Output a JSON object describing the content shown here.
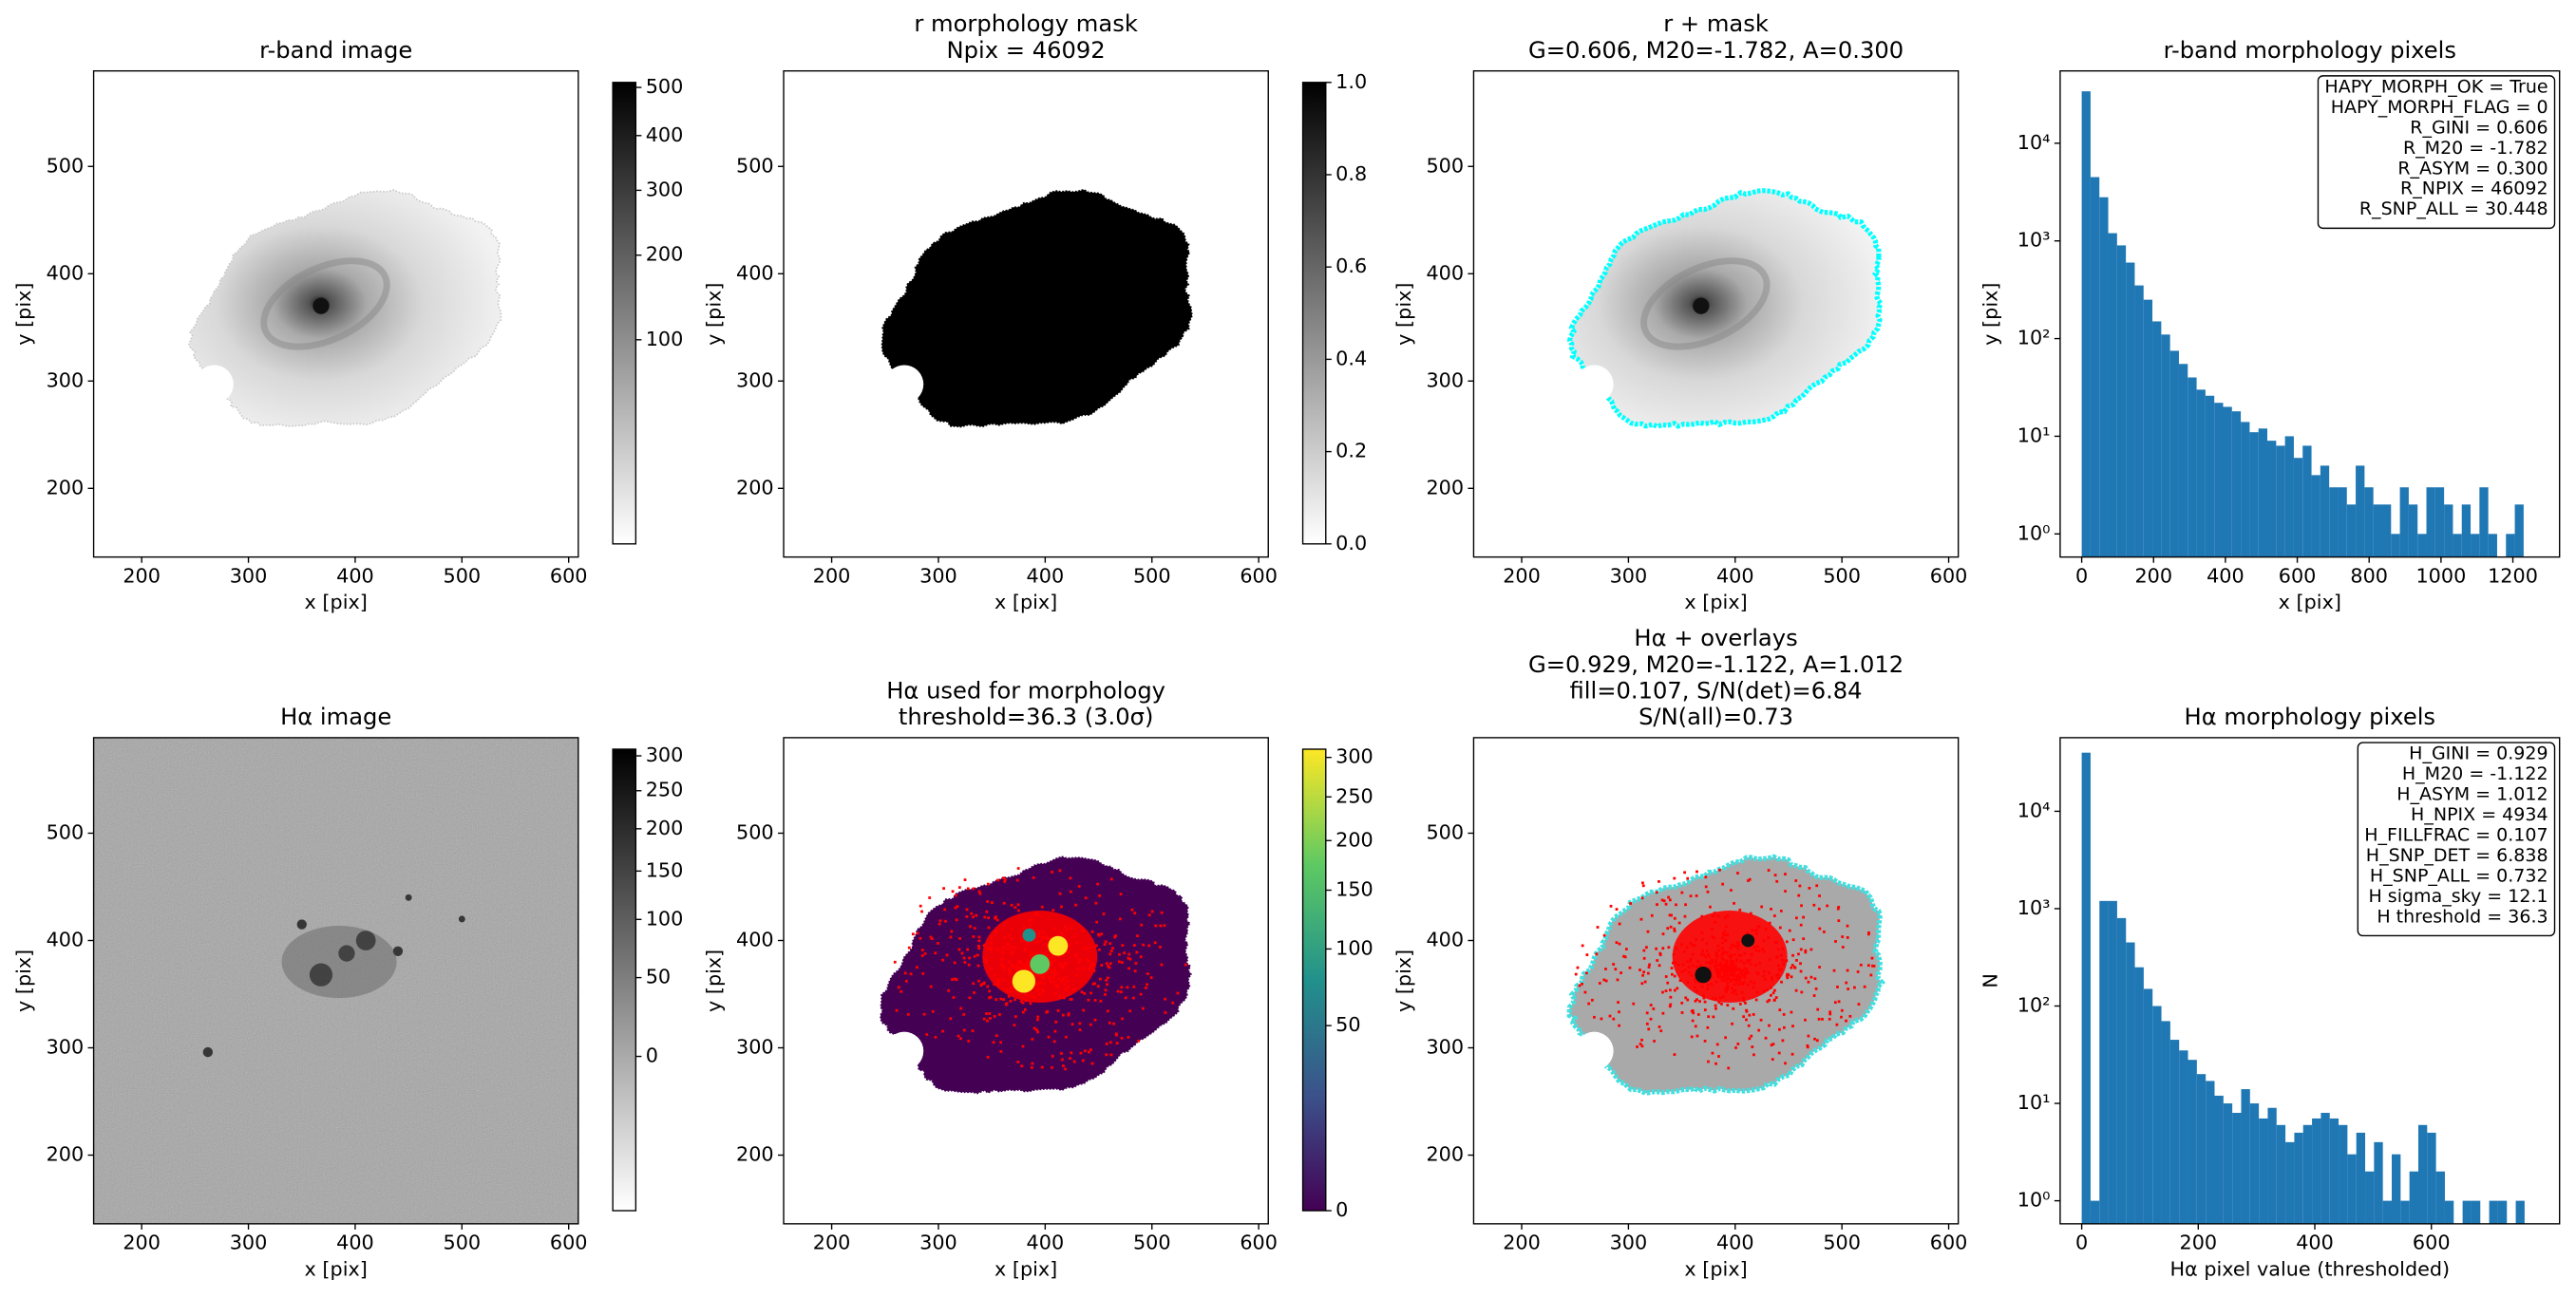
{
  "chart_data": [
    {
      "type": "image",
      "title": [
        "r-band image"
      ],
      "xlabel": "x [pix]",
      "ylabel": "y [pix]",
      "xlim": [
        155,
        609
      ],
      "ylim": [
        136,
        589
      ],
      "xticks": [
        200,
        300,
        400,
        500,
        600
      ],
      "yticks": [
        200,
        300,
        400,
        500
      ],
      "colorbar": {
        "cmap": "gray_r",
        "scale": "sqrt",
        "clim": [
          0,
          511
        ],
        "ticks": [
          100,
          200,
          300,
          400,
          500
        ]
      }
    },
    {
      "type": "image",
      "title": [
        "r morphology mask",
        "Npix = 46092"
      ],
      "xlabel": "x [pix]",
      "ylabel": "y [pix]",
      "xlim": [
        155,
        609
      ],
      "ylim": [
        136,
        589
      ],
      "xticks": [
        200,
        300,
        400,
        500,
        600
      ],
      "yticks": [
        200,
        300,
        400,
        500
      ],
      "colorbar": {
        "cmap": "gray_r",
        "scale": "linear",
        "clim": [
          0,
          1
        ],
        "ticks": [
          {
            "value": 0,
            "label": "0.0"
          },
          0.2,
          0.4,
          0.6,
          0.8,
          {
            "value": 1,
            "label": "1.0"
          }
        ]
      }
    },
    {
      "type": "image",
      "title": [
        "r + mask",
        "G=0.606, M20=-1.782, A=0.300"
      ],
      "xlabel": "x [pix]",
      "ylabel": "y [pix]",
      "xlim": [
        155,
        609
      ],
      "ylim": [
        136,
        589
      ],
      "xticks": [
        200,
        300,
        400,
        500,
        600
      ],
      "yticks": [
        200,
        300,
        400,
        500
      ]
    },
    {
      "type": "histogram",
      "title": [
        "r-band morphology pixels"
      ],
      "xlabel": "x [pix]",
      "ylabel": "y [pix]",
      "color": "#1f77b4",
      "log": true,
      "xlim": [
        -60,
        1330
      ],
      "ylim": [
        0.58,
        55000
      ],
      "xticks": [
        0,
        200,
        400,
        600,
        800,
        1000,
        1200
      ],
      "yticks": [
        {
          "value": 1,
          "label": "10⁰"
        },
        {
          "value": 10,
          "label": "10¹"
        },
        {
          "value": 100,
          "label": "10²"
        },
        {
          "value": 1000,
          "label": "10³"
        },
        {
          "value": 10000,
          "label": "10⁴"
        }
      ],
      "bins": [
        0,
        24.6,
        49.2,
        73.8,
        98.4,
        123,
        147.6,
        172.2,
        196.8,
        221.4,
        246,
        270.6,
        295.2,
        319.8,
        344.4,
        369,
        393.6,
        418.2,
        442.8,
        467.4,
        492,
        516.6,
        541.2,
        565.8,
        590.4,
        615,
        639.6,
        664.2,
        688.8,
        713.4,
        738,
        762.6,
        787.2,
        811.8,
        836.4,
        861,
        885.6,
        910.2,
        934.8,
        959.4,
        984,
        1008.6,
        1033.2,
        1057.8,
        1082.4,
        1107,
        1131.6,
        1156.2,
        1180.8,
        1205.4,
        1230
      ],
      "counts": [
        34000,
        4500,
        2800,
        1200,
        900,
        600,
        350,
        250,
        150,
        110,
        75,
        55,
        40,
        30,
        26,
        22,
        20,
        18,
        14,
        11,
        12,
        9,
        8,
        10,
        6,
        8,
        4,
        5,
        3,
        3,
        2,
        5,
        3,
        2,
        2,
        1,
        3,
        2,
        1,
        3,
        3,
        2,
        1,
        2,
        1,
        3,
        1,
        0,
        1,
        2
      ],
      "annotation": [
        "HAPY_MORPH_OK = True",
        "HAPY_MORPH_FLAG = 0",
        "R_GINI = 0.606",
        "R_M20 = -1.782",
        "R_ASYM = 0.300",
        "R_NPIX = 46092",
        "R_SNP_ALL = 30.448"
      ]
    },
    {
      "type": "image",
      "title": [
        "Hα image"
      ],
      "xlabel": "x [pix]",
      "ylabel": "y [pix]",
      "xlim": [
        155,
        609
      ],
      "ylim": [
        136,
        589
      ],
      "xticks": [
        200,
        300,
        400,
        500,
        600
      ],
      "yticks": [
        200,
        300,
        400,
        500
      ],
      "colorbar": {
        "cmap": "gray_r",
        "scale": "sqrt",
        "clim": [
          -39,
          310
        ],
        "ticks": [
          0,
          50,
          100,
          150,
          200,
          250,
          300
        ]
      }
    },
    {
      "type": "image",
      "title": [
        "Hα used for morphology",
        "threshold=36.3 (3.0σ)"
      ],
      "xlabel": "x [pix]",
      "ylabel": "y [pix]",
      "xlim": [
        155,
        609
      ],
      "ylim": [
        136,
        589
      ],
      "xticks": [
        200,
        300,
        400,
        500,
        600
      ],
      "yticks": [
        200,
        300,
        400,
        500
      ],
      "colorbar": {
        "cmap": "viridis",
        "scale": "sqrt",
        "clim": [
          0,
          311
        ],
        "ticks": [
          0,
          50,
          100,
          150,
          200,
          250,
          300
        ]
      }
    },
    {
      "type": "image",
      "title": [
        "Hα + overlays",
        "G=0.929, M20=-1.122, A=1.012",
        "fill=0.107, S/N(det)=6.84",
        "S/N(all)=0.73"
      ],
      "xlabel": "x [pix]",
      "ylabel": "y [pix]",
      "xlim": [
        155,
        609
      ],
      "ylim": [
        136,
        589
      ],
      "xticks": [
        200,
        300,
        400,
        500,
        600
      ],
      "yticks": [
        200,
        300,
        400,
        500
      ]
    },
    {
      "type": "histogram",
      "title": [
        "Hα morphology pixels"
      ],
      "xlabel": "Hα pixel value (thresholded)",
      "ylabel": "N",
      "color": "#1f77b4",
      "log": true,
      "xlim": [
        -37,
        820
      ],
      "ylim": [
        0.58,
        57000
      ],
      "xticks": [
        0,
        200,
        400,
        600
      ],
      "yticks": [
        {
          "value": 1,
          "label": "10⁰"
        },
        {
          "value": 10,
          "label": "10¹"
        },
        {
          "value": 100,
          "label": "10²"
        },
        {
          "value": 1000,
          "label": "10³"
        },
        {
          "value": 10000,
          "label": "10⁴"
        }
      ],
      "bins": [
        0,
        15.2,
        30.4,
        45.6,
        60.8,
        76,
        91.2,
        106.4,
        121.6,
        136.8,
        152,
        167.2,
        182.4,
        197.6,
        212.8,
        228,
        243.2,
        258.4,
        273.6,
        288.8,
        304,
        319.2,
        334.4,
        349.6,
        364.8,
        380,
        395.2,
        410.4,
        425.6,
        440.8,
        456,
        471.2,
        486.4,
        501.6,
        516.8,
        532,
        547.2,
        562.4,
        577.6,
        592.8,
        608,
        623.2,
        638.4,
        653.6,
        668.8,
        684,
        699.2,
        714.4,
        729.6,
        744.8,
        760
      ],
      "counts": [
        40000,
        1,
        1200,
        1200,
        800,
        450,
        250,
        150,
        100,
        70,
        45,
        35,
        28,
        20,
        17,
        12,
        10,
        8,
        14,
        10,
        7,
        9,
        6,
        4,
        5,
        6,
        7,
        8,
        7,
        6,
        3,
        5,
        2,
        4,
        1,
        3,
        1,
        2,
        6,
        5,
        2,
        1,
        0,
        1,
        1,
        0,
        1,
        1,
        0,
        1
      ],
      "annotation": [
        "H_GINI = 0.929",
        "H_M20 = -1.122",
        "H_ASYM = 1.012",
        "H_NPIX = 4934",
        "H_FILLFRAC = 0.107",
        "H_SNP_DET = 6.838",
        "H_SNP_ALL = 0.732",
        "H sigma_sky = 12.1",
        "H threshold = 36.3"
      ]
    }
  ]
}
